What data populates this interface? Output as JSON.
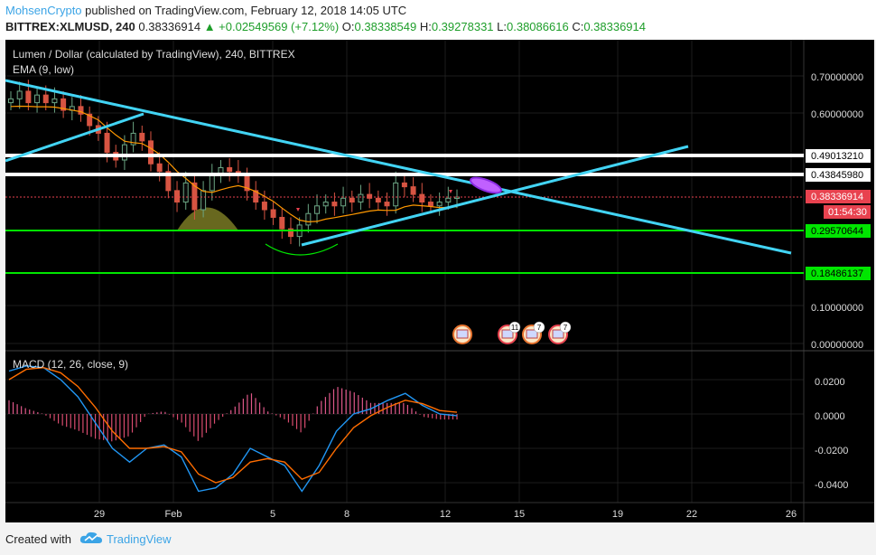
{
  "header": {
    "author": "MohsenCrypto",
    "published_text": "published on TradingView.com, February 12, 2018 14:05 UTC",
    "symbol": "BITTREX:XLMUSD, 240",
    "last_price": "0.38336914",
    "change": "▲ +0.02549569 (+7.12%)",
    "o_label": "O:",
    "o_value": "0.38338549",
    "h_label": "H:",
    "h_value": "0.39278331",
    "l_label": "L:",
    "l_value": "0.38086616",
    "c_label": "C:",
    "c_value": "0.38336914"
  },
  "chart": {
    "title": "Lumen / Dollar (calculated by TradingView), 240, BITTREX",
    "ema_label": "EMA (9, low)",
    "macd_label": "MACD (12, 26, close, 9)",
    "price_ticks": [
      "0.70000000",
      "0.60000000",
      "0.10000000",
      "0.00000000"
    ],
    "macd_ticks": [
      "0.0200",
      "0.0000",
      "-0.0200",
      "-0.0400"
    ],
    "x_ticks": [
      "29",
      "Feb",
      "5",
      "8",
      "12",
      "15",
      "19",
      "22",
      "26"
    ],
    "badges": [
      {
        "text": "0.49013210",
        "color": "#ffffff",
        "text_color": "#000000"
      },
      {
        "text": "0.43845980",
        "color": "#ffffff",
        "text_color": "#000000"
      },
      {
        "text": "0.38336914",
        "color": "#e8424f",
        "text_color": "#ffffff"
      },
      {
        "text": "01:54:30",
        "color": "#e8424f",
        "text_color": "#ffffff"
      },
      {
        "text": "0.29570644",
        "color": "#00e600",
        "text_color": "#000000"
      },
      {
        "text": "0.18486137",
        "color": "#00e600",
        "text_color": "#000000"
      }
    ],
    "events": [
      {
        "count": ""
      },
      {
        "count": "11"
      },
      {
        "count": "7"
      },
      {
        "count": "7"
      }
    ],
    "colors": {
      "up": "#6ba583",
      "down": "#d75442",
      "ema": "#ff9800",
      "trendline": "#42d4f4",
      "resistance": "#ffffff",
      "support": "#00e600",
      "macd": "#2196f3",
      "signal": "#ff6d00"
    }
  },
  "chart_data": [
    {
      "type": "candlestick",
      "title": "Lumen / Dollar (calculated by TradingView), 240, BITTREX",
      "x": [
        "29",
        "Feb",
        "5",
        "8",
        "12",
        "15",
        "19",
        "22",
        "26"
      ],
      "ylim": [
        0.0,
        0.74
      ],
      "levels": [
        0.4901321,
        0.4384598,
        0.29570644,
        0.18486137
      ],
      "last": 0.38336914,
      "close_path": [
        0.64,
        0.66,
        0.63,
        0.65,
        0.63,
        0.64,
        0.61,
        0.62,
        0.6,
        0.57,
        0.55,
        0.5,
        0.48,
        0.52,
        0.55,
        0.53,
        0.47,
        0.45,
        0.4,
        0.37,
        0.42,
        0.35,
        0.4,
        0.44,
        0.46,
        0.45,
        0.44,
        0.4,
        0.37,
        0.35,
        0.33,
        0.3,
        0.28,
        0.31,
        0.34,
        0.36,
        0.37,
        0.36,
        0.38,
        0.37,
        0.39,
        0.38,
        0.37,
        0.36,
        0.42,
        0.41,
        0.39,
        0.37,
        0.36,
        0.37,
        0.38,
        0.383
      ]
    },
    {
      "type": "line",
      "title": "MACD (12, 26, close, 9)",
      "ylim": [
        -0.046,
        0.028
      ],
      "series": [
        {
          "name": "MACD",
          "values": [
            0.025,
            0.028,
            0.027,
            0.02,
            0.01,
            -0.005,
            -0.02,
            -0.028,
            -0.02,
            -0.018,
            -0.025,
            -0.045,
            -0.043,
            -0.035,
            -0.02,
            -0.025,
            -0.03,
            -0.045,
            -0.03,
            -0.01,
            0.0,
            0.003,
            0.008,
            0.012,
            0.005,
            0.0,
            -0.001
          ]
        },
        {
          "name": "Signal",
          "values": [
            0.02,
            0.026,
            0.027,
            0.024,
            0.016,
            0.004,
            -0.01,
            -0.02,
            -0.02,
            -0.019,
            -0.022,
            -0.035,
            -0.04,
            -0.037,
            -0.028,
            -0.026,
            -0.028,
            -0.038,
            -0.034,
            -0.02,
            -0.008,
            -0.001,
            0.004,
            0.008,
            0.006,
            0.002,
            0.001
          ]
        }
      ]
    }
  ]
}
